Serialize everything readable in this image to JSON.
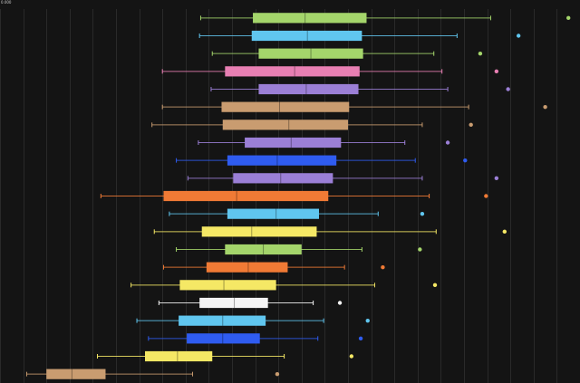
{
  "header": {
    "corner_label": "0.000"
  },
  "chart_data": {
    "type": "boxplot",
    "orientation": "horizontal",
    "grid": true,
    "xlim": [
      0,
      50
    ],
    "background": "#141414",
    "gridColor": "#2a2a2a",
    "series": [
      {
        "whisker_low": 17.3,
        "q1": 21.8,
        "median": 26.3,
        "q3": 31.6,
        "whisker_high": 42.3,
        "outlier": 49.0,
        "color": "#a4d56b"
      },
      {
        "whisker_low": 17.2,
        "q1": 21.7,
        "median": 26.5,
        "q3": 31.2,
        "whisker_high": 39.4,
        "outlier": 44.7,
        "color": "#60c6ef"
      },
      {
        "whisker_low": 18.3,
        "q1": 22.3,
        "median": 26.8,
        "q3": 31.3,
        "whisker_high": 37.4,
        "outlier": 41.4,
        "color": "#a4d56b"
      },
      {
        "whisker_low": 14.0,
        "q1": 19.4,
        "median": 25.4,
        "q3": 31.0,
        "whisker_high": 38.1,
        "outlier": 42.8,
        "color": "#e87fb3"
      },
      {
        "whisker_low": 18.2,
        "q1": 22.3,
        "median": 26.4,
        "q3": 30.9,
        "whisker_high": 38.6,
        "outlier": 43.8,
        "color": "#9b7fd6"
      },
      {
        "whisker_low": 14.0,
        "q1": 19.1,
        "median": 24.1,
        "q3": 30.1,
        "whisker_high": 40.4,
        "outlier": 47.0,
        "color": "#c99c70"
      },
      {
        "whisker_low": 13.1,
        "q1": 19.2,
        "median": 24.9,
        "q3": 30.0,
        "whisker_high": 36.4,
        "outlier": 40.6,
        "color": "#c99c70"
      },
      {
        "whisker_low": 17.1,
        "q1": 21.1,
        "median": 25.1,
        "q3": 29.4,
        "whisker_high": 34.9,
        "outlier": 38.6,
        "color": "#9b7fd6"
      },
      {
        "whisker_low": 15.2,
        "q1": 19.6,
        "median": 23.9,
        "q3": 29.0,
        "whisker_high": 35.8,
        "outlier": 40.1,
        "color": "#2f5cf0"
      },
      {
        "whisker_low": 16.2,
        "q1": 20.1,
        "median": 24.2,
        "q3": 28.7,
        "whisker_high": 36.4,
        "outlier": 42.8,
        "color": "#9b7fd6"
      },
      {
        "whisker_low": 8.7,
        "q1": 14.1,
        "median": 20.4,
        "q3": 28.3,
        "whisker_high": 37.0,
        "outlier": 41.9,
        "color": "#f07a35"
      },
      {
        "whisker_low": 14.6,
        "q1": 19.6,
        "median": 23.8,
        "q3": 27.5,
        "whisker_high": 32.6,
        "outlier": 36.4,
        "color": "#60c6ef"
      },
      {
        "whisker_low": 13.3,
        "q1": 17.4,
        "median": 21.7,
        "q3": 27.3,
        "whisker_high": 37.6,
        "outlier": 43.5,
        "color": "#f5e865"
      },
      {
        "whisker_low": 15.2,
        "q1": 19.4,
        "median": 22.7,
        "q3": 26.0,
        "whisker_high": 31.2,
        "outlier": 36.2,
        "color": "#a4d56b"
      },
      {
        "whisker_low": 14.1,
        "q1": 17.8,
        "median": 21.4,
        "q3": 24.8,
        "whisker_high": 29.7,
        "outlier": 33.0,
        "color": "#f07a35"
      },
      {
        "whisker_low": 11.3,
        "q1": 15.5,
        "median": 19.3,
        "q3": 23.8,
        "whisker_high": 32.3,
        "outlier": 37.5,
        "color": "#f5e865"
      },
      {
        "whisker_low": 13.7,
        "q1": 17.2,
        "median": 20.2,
        "q3": 23.1,
        "whisker_high": 27.0,
        "outlier": 29.3,
        "color": "#f4f4f4"
      },
      {
        "whisker_low": 11.8,
        "q1": 15.4,
        "median": 19.2,
        "q3": 22.9,
        "whisker_high": 27.9,
        "outlier": 31.7,
        "color": "#60c6ef"
      },
      {
        "whisker_low": 12.8,
        "q1": 16.1,
        "median": 19.2,
        "q3": 22.4,
        "whisker_high": 27.4,
        "outlier": 31.1,
        "color": "#2f5cf0"
      },
      {
        "whisker_low": 8.4,
        "q1": 12.5,
        "median": 15.3,
        "q3": 18.3,
        "whisker_high": 24.5,
        "outlier": 30.3,
        "color": "#f5e865"
      },
      {
        "whisker_low": 2.3,
        "q1": 4.0,
        "median": 6.2,
        "q3": 9.1,
        "whisker_high": 16.6,
        "outlier": 23.9,
        "color": "#c99c70"
      }
    ]
  }
}
